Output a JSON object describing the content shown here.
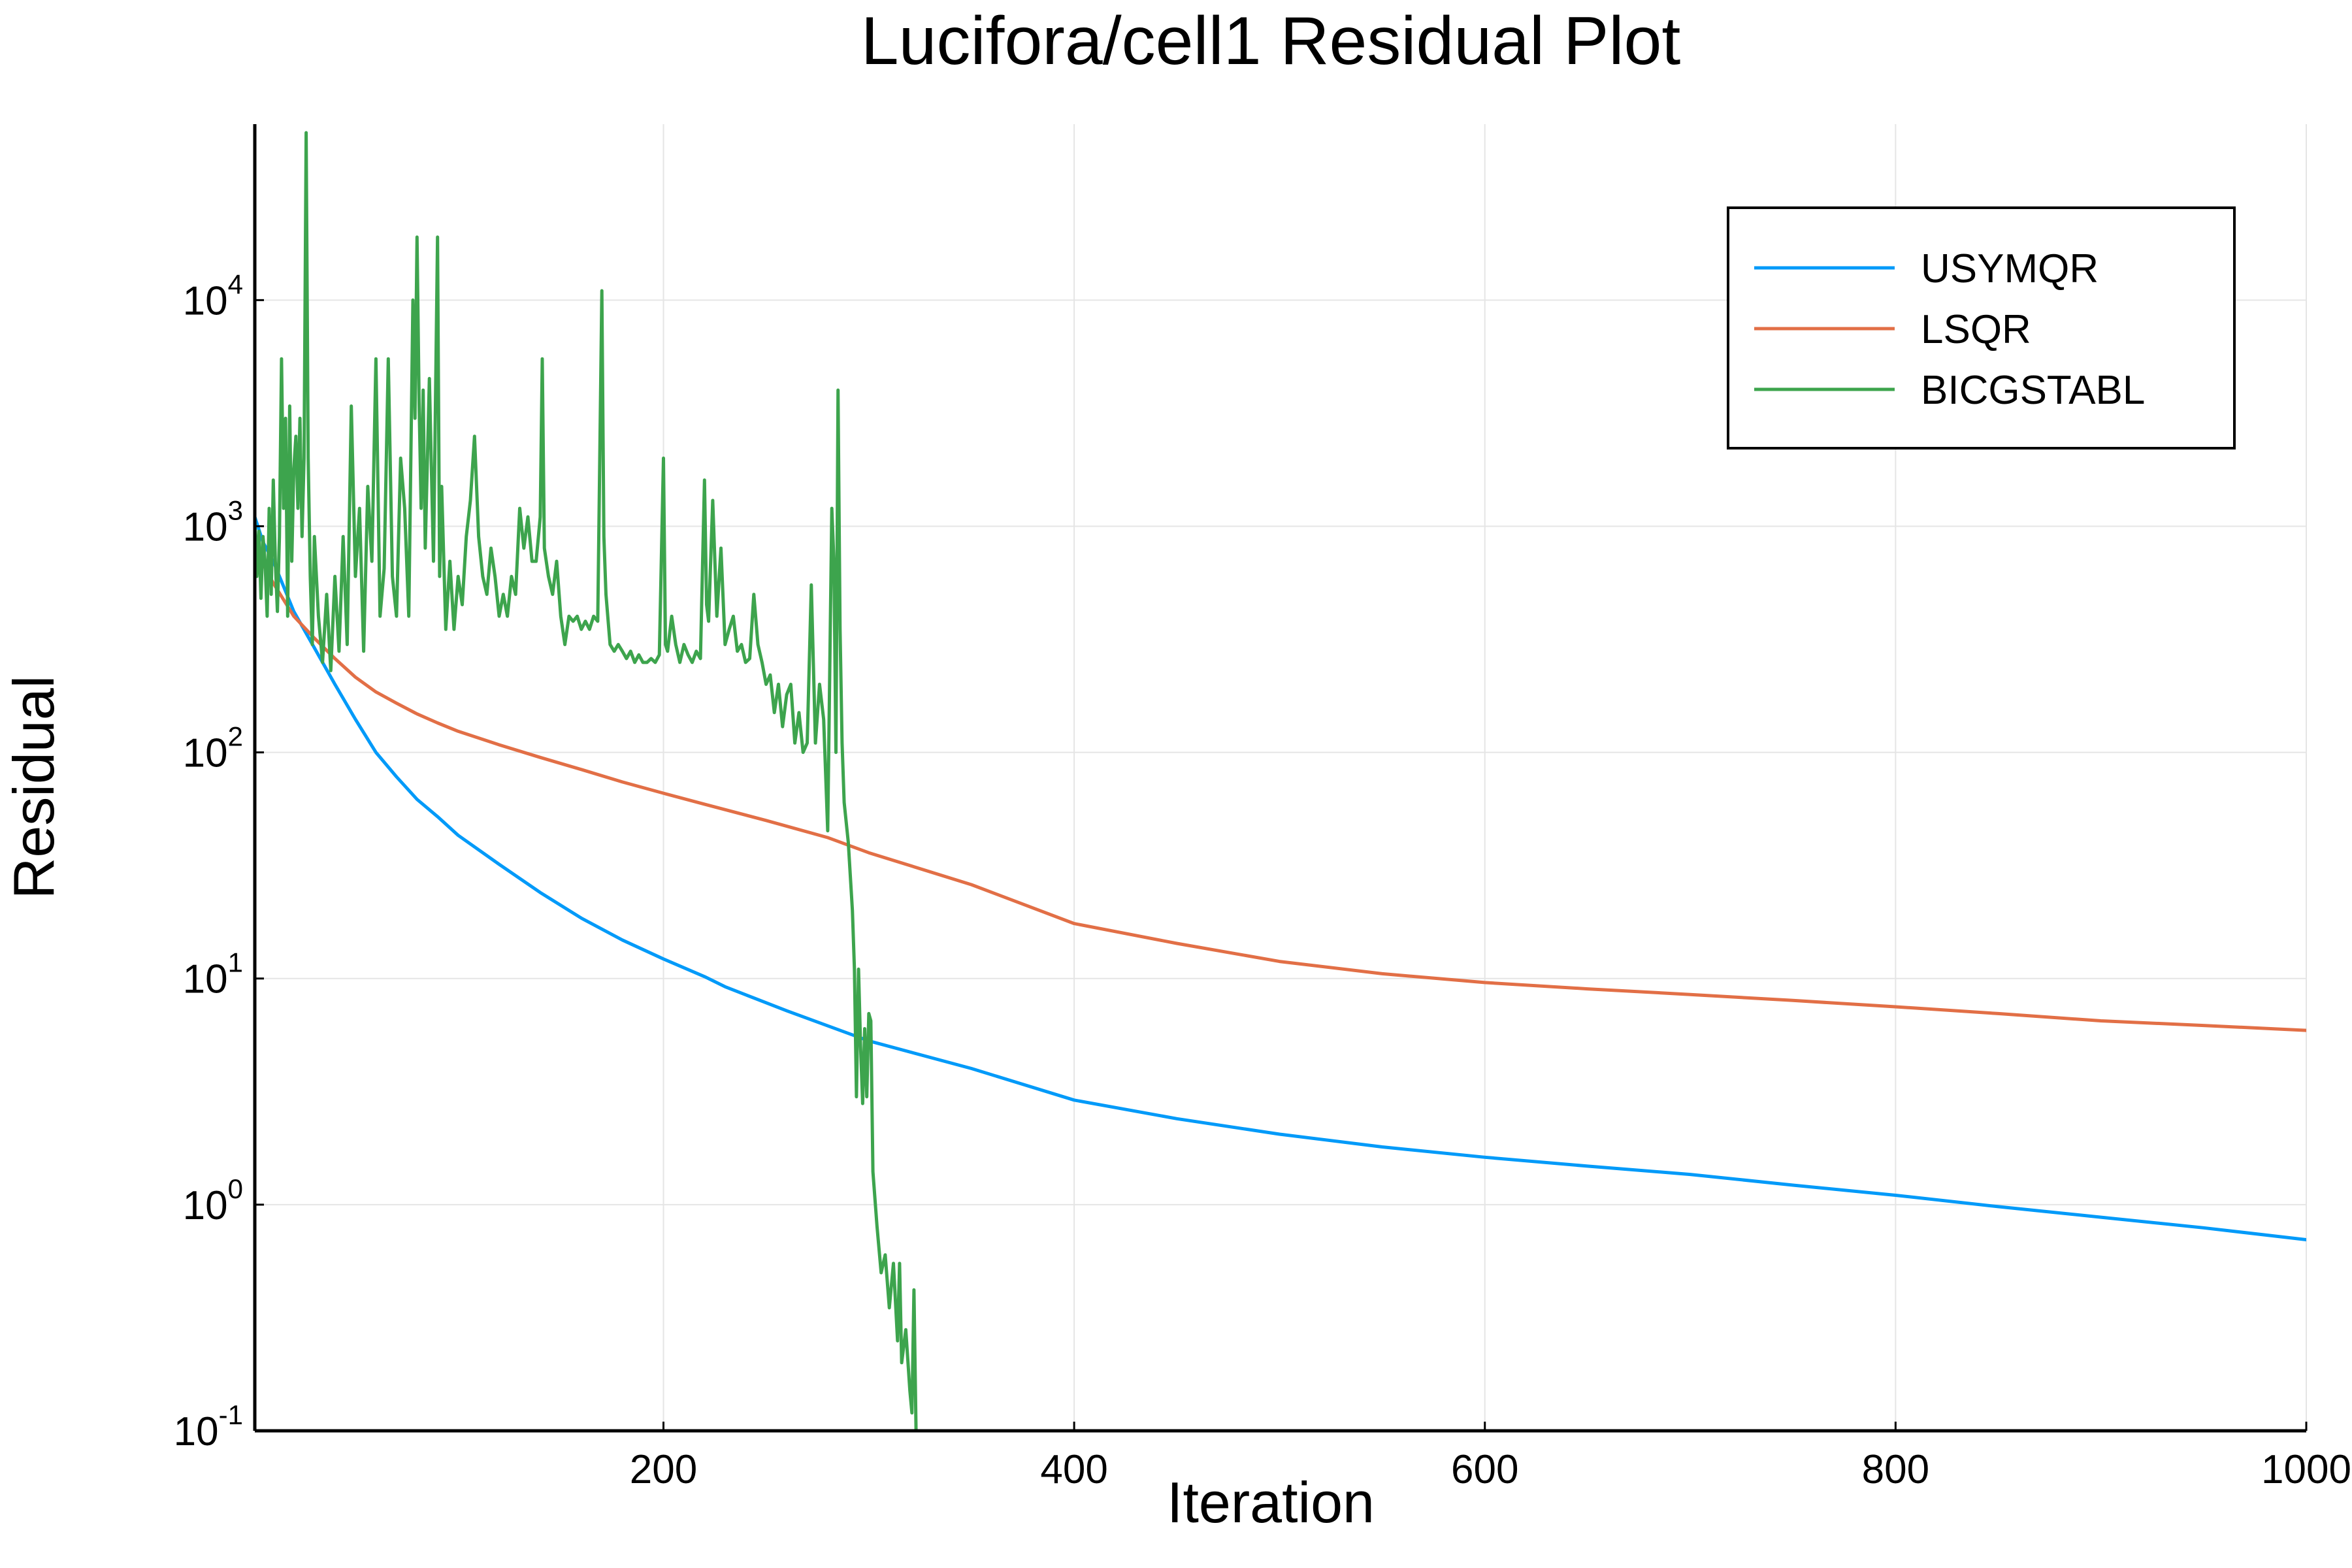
{
  "chart_data": {
    "type": "line",
    "title": "Lucifora/cell1 Residual Plot",
    "xlabel": "Iteration",
    "ylabel": "Residual",
    "xlim": [
      1,
      1000
    ],
    "ylim": [
      0.1,
      60000
    ],
    "yscale": "log",
    "grid": true,
    "legend_position": "top-right",
    "x_ticks": [
      200,
      400,
      600,
      800,
      1000
    ],
    "y_ticks": [
      {
        "value": 0.1,
        "base": "10",
        "exp": "-1"
      },
      {
        "value": 1,
        "base": "10",
        "exp": "0"
      },
      {
        "value": 10,
        "base": "10",
        "exp": "1"
      },
      {
        "value": 100,
        "base": "10",
        "exp": "2"
      },
      {
        "value": 1000,
        "base": "10",
        "exp": "3"
      },
      {
        "value": 10000,
        "base": "10",
        "exp": "4"
      }
    ],
    "series": [
      {
        "name": "USYMQR",
        "color": "#009af9",
        "points": [
          [
            1,
            1100
          ],
          [
            5,
            850
          ],
          [
            10,
            700
          ],
          [
            20,
            420
          ],
          [
            30,
            290
          ],
          [
            40,
            200
          ],
          [
            50,
            140
          ],
          [
            60,
            100
          ],
          [
            70,
            78
          ],
          [
            80,
            62
          ],
          [
            90,
            52
          ],
          [
            100,
            43
          ],
          [
            120,
            32
          ],
          [
            140,
            24
          ],
          [
            160,
            18.5
          ],
          [
            180,
            14.8
          ],
          [
            200,
            12.2
          ],
          [
            220,
            10.2
          ],
          [
            230,
            9.2
          ],
          [
            260,
            7.2
          ],
          [
            300,
            5.3
          ],
          [
            350,
            4.0
          ],
          [
            400,
            2.9
          ],
          [
            450,
            2.4
          ],
          [
            500,
            2.05
          ],
          [
            550,
            1.8
          ],
          [
            600,
            1.62
          ],
          [
            650,
            1.48
          ],
          [
            700,
            1.36
          ],
          [
            750,
            1.22
          ],
          [
            800,
            1.1
          ],
          [
            850,
            0.98
          ],
          [
            900,
            0.88
          ],
          [
            950,
            0.79
          ],
          [
            1000,
            0.7
          ]
        ]
      },
      {
        "name": "LSQR",
        "color": "#e26f46",
        "points": [
          [
            1,
            800
          ],
          [
            10,
            560
          ],
          [
            20,
            400
          ],
          [
            30,
            320
          ],
          [
            40,
            260
          ],
          [
            50,
            215
          ],
          [
            60,
            185
          ],
          [
            70,
            165
          ],
          [
            80,
            148
          ],
          [
            90,
            135
          ],
          [
            100,
            124
          ],
          [
            120,
            108
          ],
          [
            140,
            95
          ],
          [
            160,
            84
          ],
          [
            180,
            74
          ],
          [
            200,
            66
          ],
          [
            220,
            59
          ],
          [
            250,
            50
          ],
          [
            280,
            42
          ],
          [
            300,
            36
          ],
          [
            350,
            26
          ],
          [
            400,
            17.5
          ],
          [
            450,
            14.3
          ],
          [
            500,
            11.9
          ],
          [
            550,
            10.5
          ],
          [
            600,
            9.6
          ],
          [
            650,
            9.0
          ],
          [
            700,
            8.5
          ],
          [
            750,
            8.0
          ],
          [
            800,
            7.5
          ],
          [
            850,
            7.0
          ],
          [
            900,
            6.5
          ],
          [
            950,
            6.2
          ],
          [
            1000,
            5.9
          ]
        ]
      },
      {
        "name": "BICGSTABL",
        "color": "#3da44d",
        "points": [
          [
            1,
            1100
          ],
          [
            2,
            600
          ],
          [
            3,
            950
          ],
          [
            4,
            480
          ],
          [
            5,
            900
          ],
          [
            6,
            700
          ],
          [
            7,
            400
          ],
          [
            8,
            1200
          ],
          [
            9,
            500
          ],
          [
            10,
            1600
          ],
          [
            11,
            700
          ],
          [
            12,
            420
          ],
          [
            13,
            900
          ],
          [
            14,
            5500
          ],
          [
            15,
            1200
          ],
          [
            16,
            3000
          ],
          [
            17,
            400
          ],
          [
            18,
            3400
          ],
          [
            19,
            700
          ],
          [
            20,
            1800
          ],
          [
            21,
            2500
          ],
          [
            22,
            1200
          ],
          [
            23,
            3000
          ],
          [
            24,
            900
          ],
          [
            25,
            2000
          ],
          [
            26,
            55000
          ],
          [
            27,
            2000
          ],
          [
            28,
            600
          ],
          [
            29,
            300
          ],
          [
            30,
            900
          ],
          [
            32,
            400
          ],
          [
            34,
            250
          ],
          [
            36,
            500
          ],
          [
            38,
            230
          ],
          [
            40,
            600
          ],
          [
            42,
            280
          ],
          [
            44,
            900
          ],
          [
            46,
            300
          ],
          [
            48,
            3400
          ],
          [
            50,
            600
          ],
          [
            52,
            1200
          ],
          [
            54,
            280
          ],
          [
            56,
            1500
          ],
          [
            58,
            700
          ],
          [
            60,
            5500
          ],
          [
            62,
            400
          ],
          [
            64,
            650
          ],
          [
            66,
            5500
          ],
          [
            68,
            600
          ],
          [
            70,
            400
          ],
          [
            72,
            2000
          ],
          [
            74,
            1200
          ],
          [
            76,
            400
          ],
          [
            78,
            10000
          ],
          [
            79,
            3000
          ],
          [
            80,
            19000
          ],
          [
            81,
            3500
          ],
          [
            82,
            1200
          ],
          [
            83,
            4000
          ],
          [
            84,
            800
          ],
          [
            86,
            4500
          ],
          [
            88,
            700
          ],
          [
            90,
            19000
          ],
          [
            91,
            600
          ],
          [
            92,
            1500
          ],
          [
            94,
            350
          ],
          [
            96,
            700
          ],
          [
            98,
            350
          ],
          [
            100,
            600
          ],
          [
            102,
            450
          ],
          [
            104,
            900
          ],
          [
            106,
            1300
          ],
          [
            108,
            2500
          ],
          [
            110,
            900
          ],
          [
            112,
            600
          ],
          [
            114,
            500
          ],
          [
            116,
            800
          ],
          [
            118,
            600
          ],
          [
            120,
            400
          ],
          [
            122,
            500
          ],
          [
            124,
            400
          ],
          [
            126,
            600
          ],
          [
            128,
            500
          ],
          [
            130,
            1200
          ],
          [
            132,
            800
          ],
          [
            134,
            1100
          ],
          [
            136,
            700
          ],
          [
            138,
            700
          ],
          [
            140,
            1100
          ],
          [
            141,
            5500
          ],
          [
            142,
            800
          ],
          [
            144,
            600
          ],
          [
            146,
            500
          ],
          [
            148,
            700
          ],
          [
            150,
            400
          ],
          [
            152,
            300
          ],
          [
            154,
            400
          ],
          [
            156,
            380
          ],
          [
            158,
            400
          ],
          [
            160,
            350
          ],
          [
            162,
            380
          ],
          [
            164,
            350
          ],
          [
            166,
            400
          ],
          [
            168,
            380
          ],
          [
            170,
            11000
          ],
          [
            171,
            900
          ],
          [
            172,
            500
          ],
          [
            174,
            300
          ],
          [
            176,
            280
          ],
          [
            178,
            300
          ],
          [
            180,
            280
          ],
          [
            182,
            260
          ],
          [
            184,
            280
          ],
          [
            186,
            250
          ],
          [
            188,
            270
          ],
          [
            190,
            250
          ],
          [
            192,
            250
          ],
          [
            194,
            260
          ],
          [
            196,
            250
          ],
          [
            198,
            270
          ],
          [
            200,
            2000
          ],
          [
            201,
            300
          ],
          [
            202,
            280
          ],
          [
            204,
            400
          ],
          [
            206,
            300
          ],
          [
            208,
            250
          ],
          [
            210,
            300
          ],
          [
            212,
            270
          ],
          [
            214,
            250
          ],
          [
            216,
            280
          ],
          [
            218,
            260
          ],
          [
            220,
            1600
          ],
          [
            221,
            450
          ],
          [
            222,
            380
          ],
          [
            224,
            1300
          ],
          [
            226,
            400
          ],
          [
            228,
            800
          ],
          [
            230,
            300
          ],
          [
            232,
            350
          ],
          [
            234,
            400
          ],
          [
            236,
            280
          ],
          [
            238,
            300
          ],
          [
            240,
            250
          ],
          [
            242,
            260
          ],
          [
            244,
            500
          ],
          [
            246,
            300
          ],
          [
            248,
            250
          ],
          [
            250,
            200
          ],
          [
            252,
            220
          ],
          [
            254,
            150
          ],
          [
            256,
            200
          ],
          [
            258,
            130
          ],
          [
            260,
            180
          ],
          [
            262,
            200
          ],
          [
            264,
            110
          ],
          [
            266,
            150
          ],
          [
            268,
            100
          ],
          [
            270,
            110
          ],
          [
            272,
            550
          ],
          [
            274,
            110
          ],
          [
            276,
            200
          ],
          [
            278,
            140
          ],
          [
            280,
            45
          ],
          [
            282,
            1200
          ],
          [
            283,
            700
          ],
          [
            284,
            100
          ],
          [
            285,
            4000
          ],
          [
            286,
            350
          ],
          [
            287,
            110
          ],
          [
            288,
            60
          ],
          [
            290,
            40
          ],
          [
            292,
            20
          ],
          [
            293,
            11
          ],
          [
            294,
            3
          ],
          [
            295,
            11
          ],
          [
            296,
            5
          ],
          [
            297,
            2.8
          ],
          [
            298,
            6
          ],
          [
            299,
            3
          ],
          [
            300,
            7
          ],
          [
            301,
            6.5
          ],
          [
            302,
            1.4
          ],
          [
            304,
            0.8
          ],
          [
            306,
            0.5
          ],
          [
            308,
            0.6
          ],
          [
            310,
            0.35
          ],
          [
            312,
            0.55
          ],
          [
            314,
            0.25
          ],
          [
            315,
            0.55
          ],
          [
            316,
            0.2
          ],
          [
            318,
            0.28
          ],
          [
            320,
            0.15
          ],
          [
            321,
            0.12
          ],
          [
            322,
            0.42
          ],
          [
            323,
            0.1
          ]
        ]
      }
    ]
  }
}
